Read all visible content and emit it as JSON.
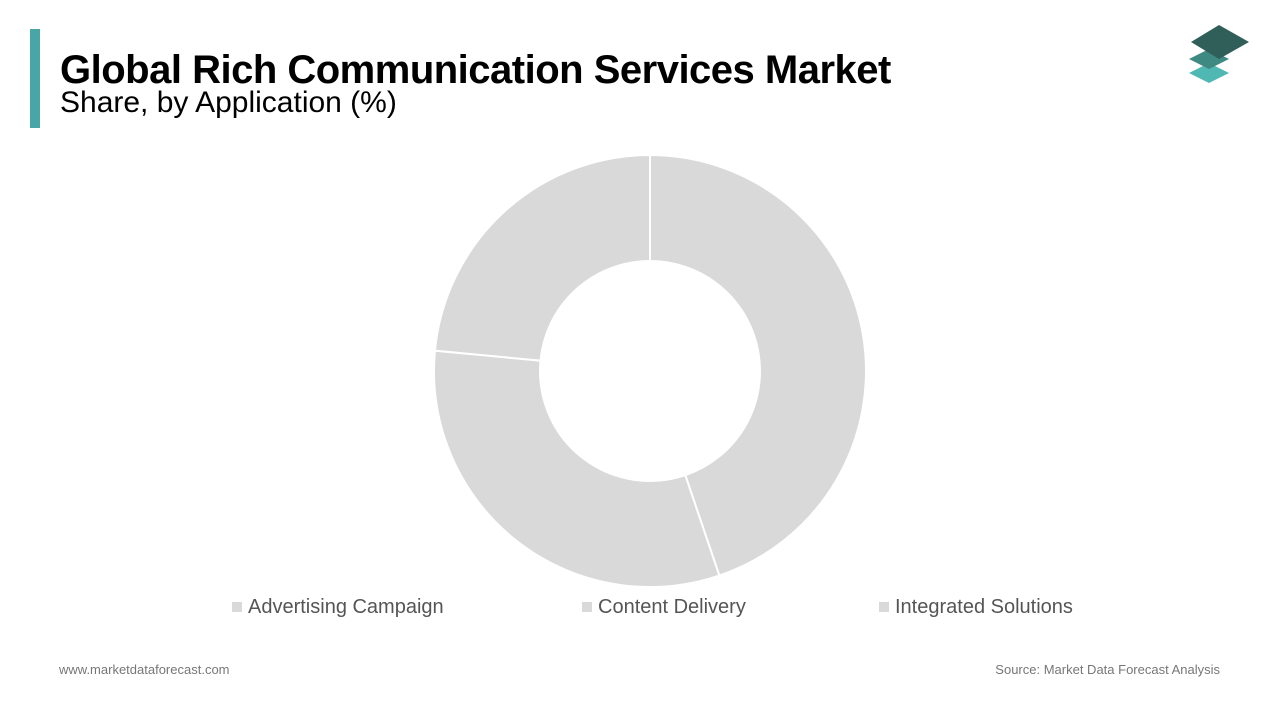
{
  "header": {
    "title": "Global Rich Communication Services Market",
    "subtitle": "Share, by Application (%)"
  },
  "colors": {
    "accent": "#4aa6a6",
    "slice": "#d9d9d9",
    "slice_border": "#ffffff",
    "logo_top": "#2f5f58",
    "logo_mid": "#3e8a82",
    "logo_bottom": "#4fb8b3"
  },
  "logo": {
    "icon": "stacked-layers-icon"
  },
  "chart_data": {
    "type": "pie",
    "variant": "donut",
    "categories": [
      "Advertising Campaign",
      "Content Delivery",
      "Integrated Solutions"
    ],
    "values": [
      44.8,
      31.7,
      23.5
    ],
    "legend_position": "bottom",
    "data_labels": false
  },
  "footer": {
    "website": "www.marketdataforecast.com",
    "source": "Source: Market Data Forecast Analysis"
  }
}
